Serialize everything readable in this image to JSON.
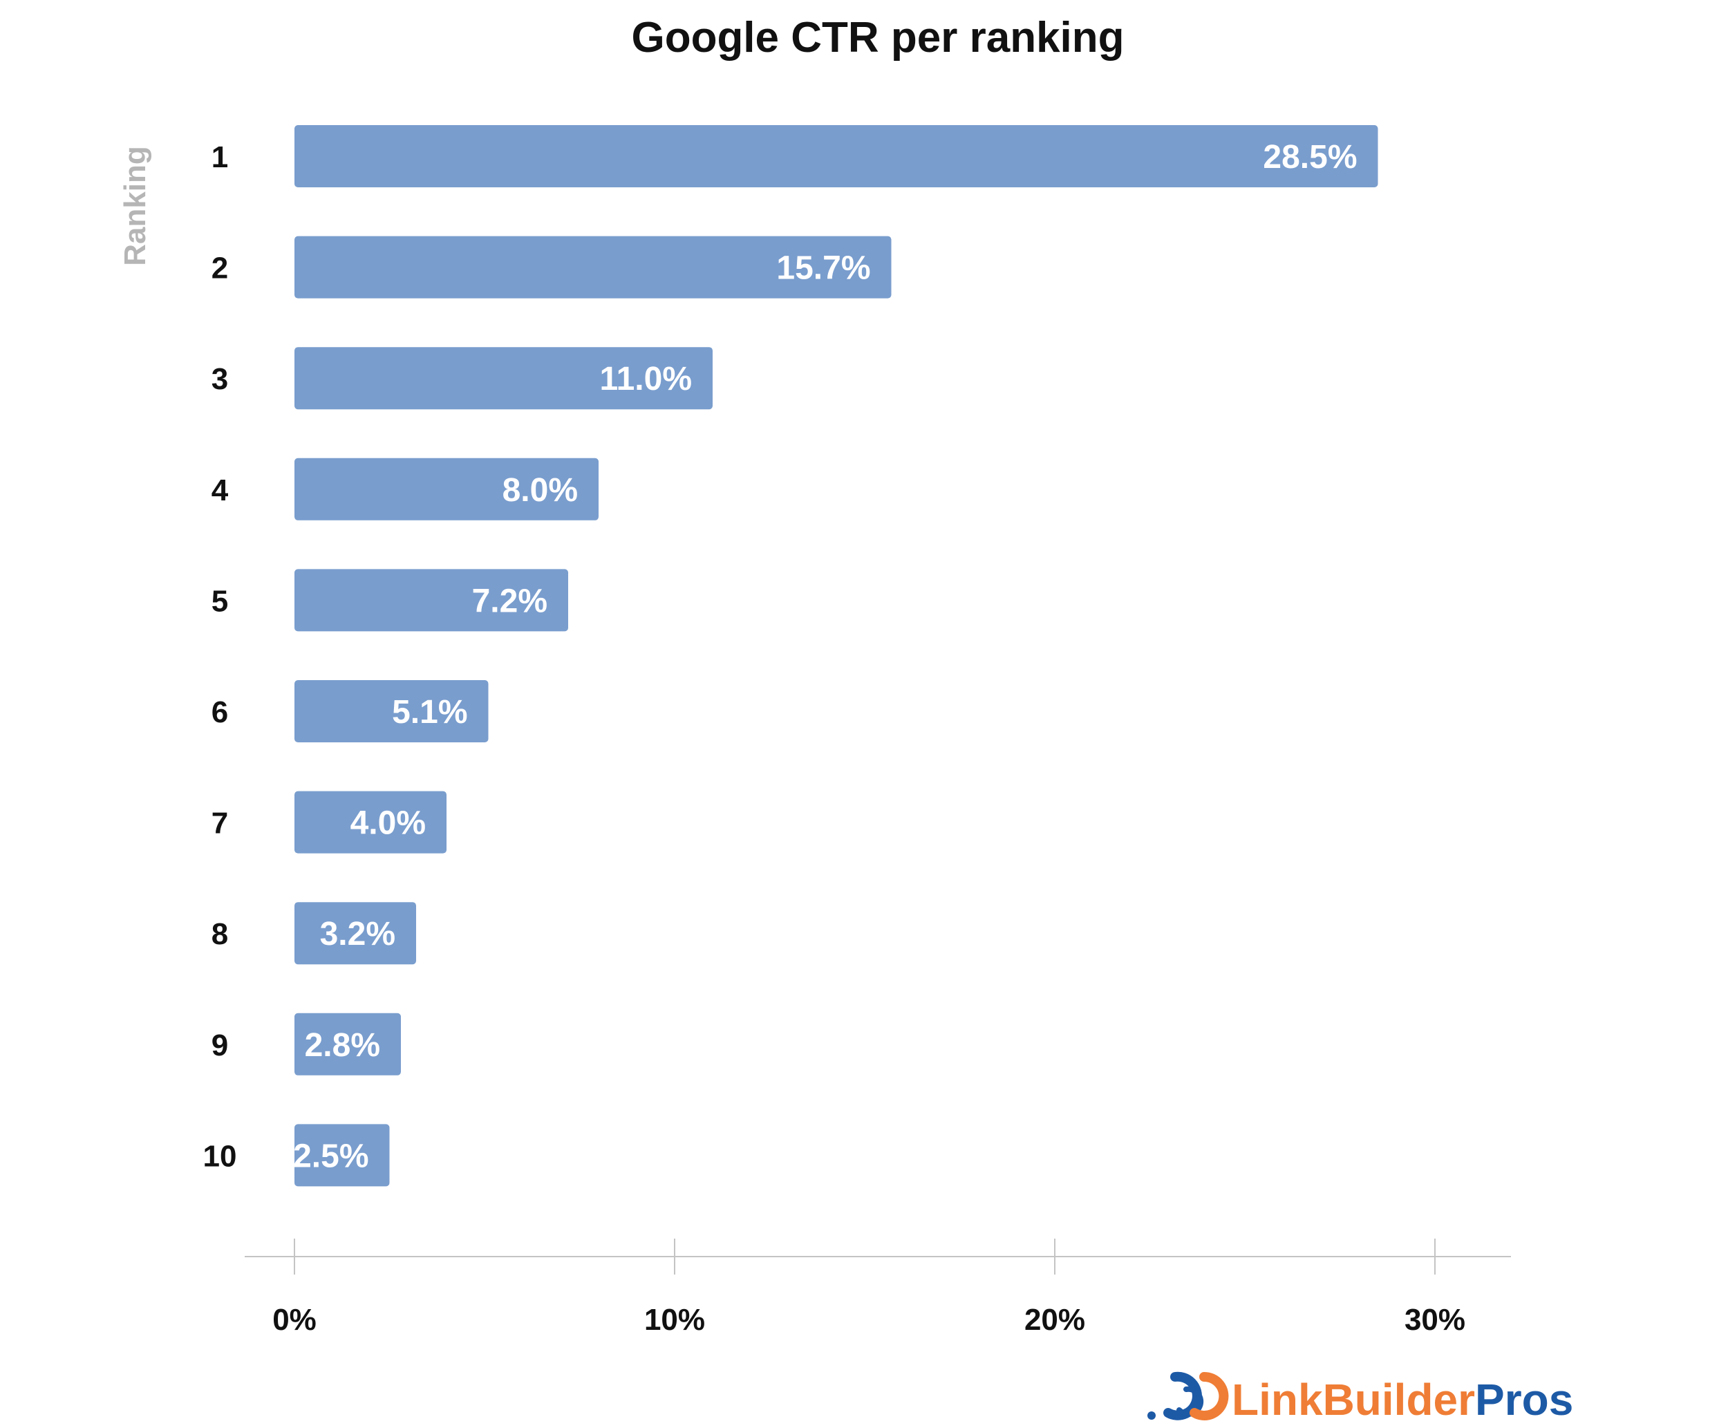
{
  "chart_data": {
    "type": "bar",
    "orientation": "horizontal",
    "title": "Google CTR per ranking",
    "ylabel": "Ranking",
    "xlabel": "",
    "categories": [
      "1",
      "2",
      "3",
      "4",
      "5",
      "6",
      "7",
      "8",
      "9",
      "10"
    ],
    "values": [
      28.5,
      15.7,
      11.0,
      8.0,
      7.2,
      5.1,
      4.0,
      3.2,
      2.8,
      2.5
    ],
    "value_labels": [
      "28.5%",
      "15.7%",
      "11.0%",
      "8.0%",
      "7.2%",
      "5.1%",
      "4.0%",
      "3.2%",
      "2.8%",
      "2.5%"
    ],
    "xlim": [
      0,
      30
    ],
    "x_ticks": [
      0,
      10,
      20,
      30
    ],
    "x_tick_labels": [
      "0%",
      "10%",
      "20%",
      "30%"
    ],
    "grid": false,
    "legend": "none",
    "bar_color": "#799dcd"
  },
  "logo": {
    "part1": "LinkBuilder",
    "part2": "Pros",
    "color1": "#ef7d35",
    "color2": "#1d5aa6"
  }
}
